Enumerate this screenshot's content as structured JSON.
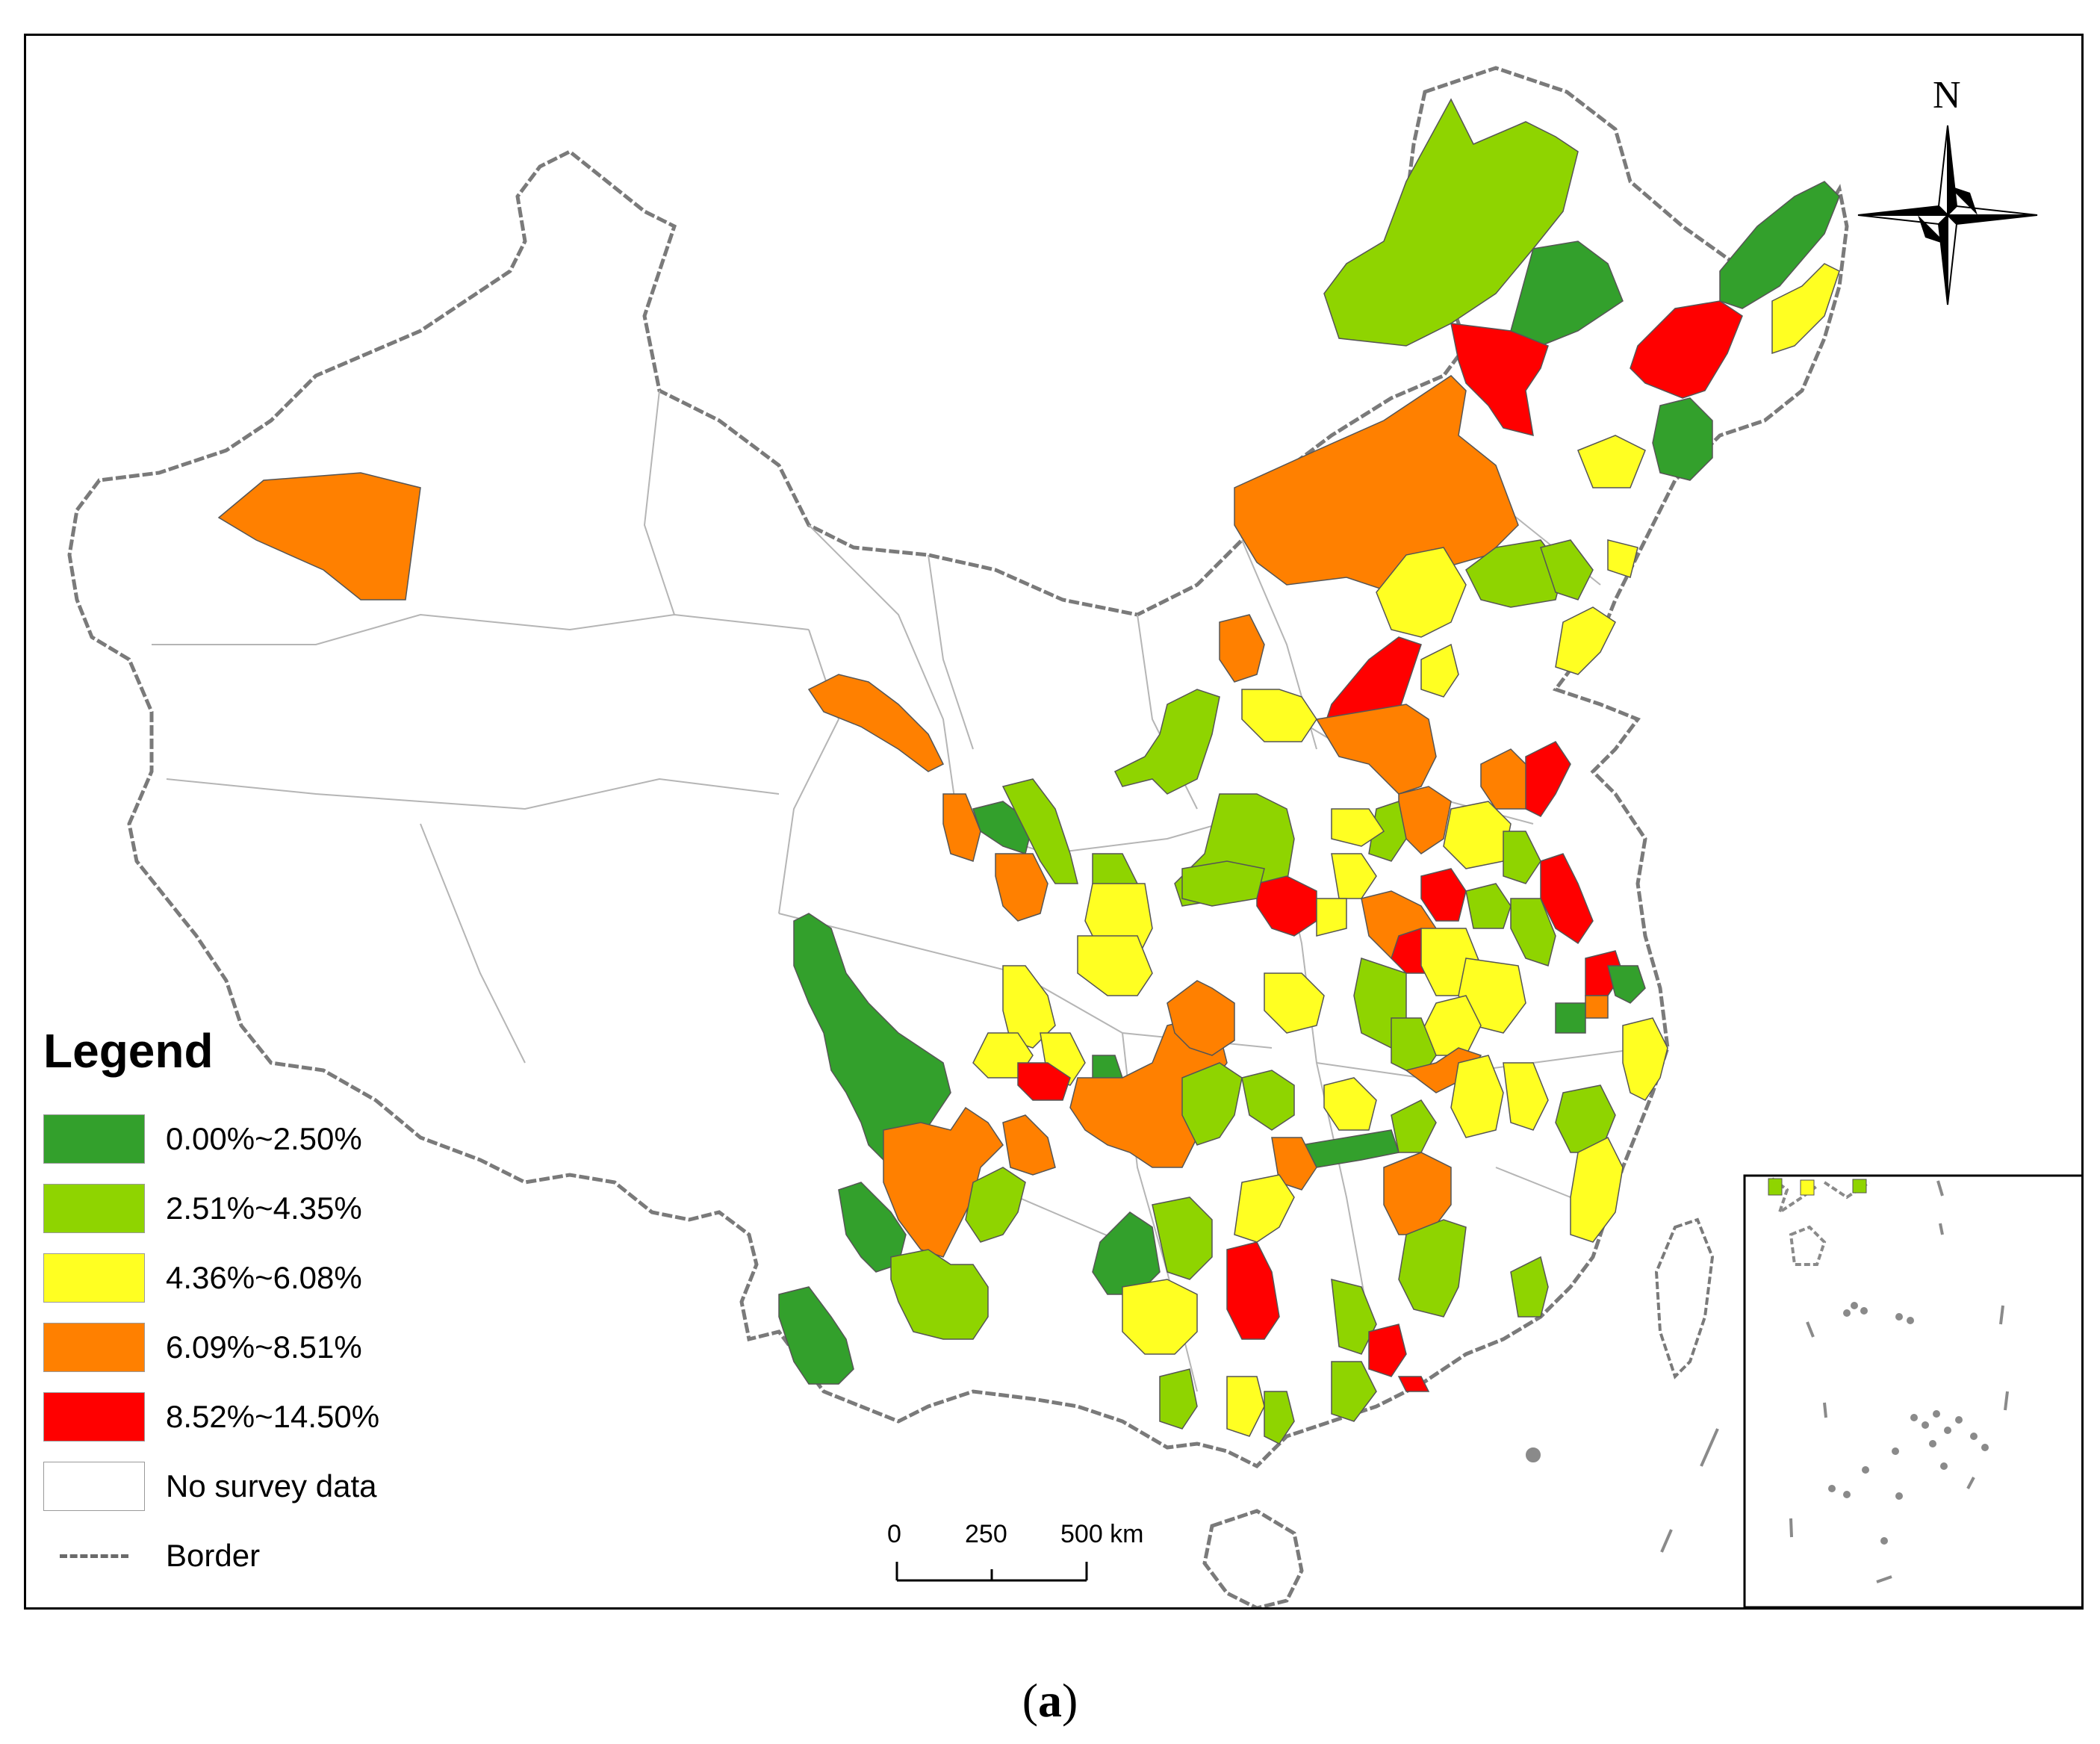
{
  "legend": {
    "title": "Legend",
    "items": [
      {
        "label": "0.00%~2.50%",
        "color": "#33a02c"
      },
      {
        "label": "2.51%~4.35%",
        "color": "#8fd400"
      },
      {
        "label": "4.36%~6.08%",
        "color": "#ffff22"
      },
      {
        "label": "6.09%~8.51%",
        "color": "#ff8000"
      },
      {
        "label": "8.52%~14.50%",
        "color": "#ff0000"
      },
      {
        "label": "No survey data",
        "color": "#ffffff"
      },
      {
        "label": "Border",
        "color": "#6b6b6b"
      }
    ]
  },
  "scale_bar": {
    "tick_labels": [
      "0",
      "250",
      "500 km"
    ]
  },
  "north_arrow": {
    "label": "N",
    "icon": "north-arrow-icon"
  },
  "caption": {
    "open": "(",
    "letter": "a",
    "close": ")"
  }
}
